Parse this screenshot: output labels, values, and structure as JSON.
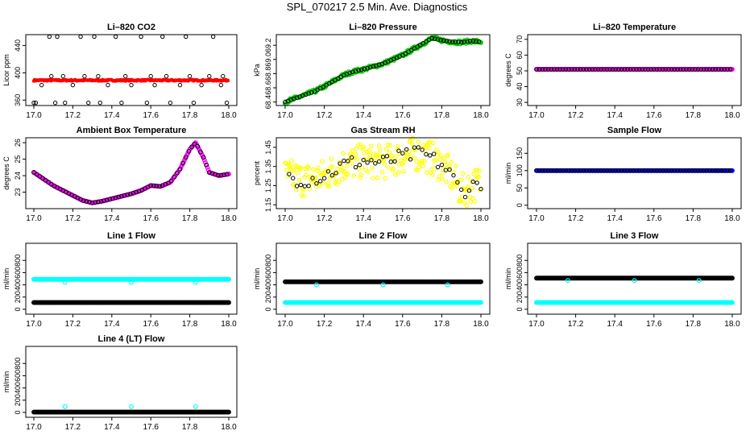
{
  "page": {
    "title": "SPL_070217  2.5 Min. Ave. Diagnostics"
  },
  "chart_data": [
    {
      "id": "co2",
      "type": "scatter",
      "title": "Li–820 CO2",
      "xlabel": "",
      "ylabel": "Licor ppm",
      "xlim": [
        17.0,
        18.0
      ],
      "ylim": [
        352,
        456
      ],
      "xticks": [
        17.0,
        17.2,
        17.4,
        17.6,
        17.8,
        18.0
      ],
      "xtick_labels": [
        "17.0",
        "17.2",
        "17.4",
        "17.6",
        "17.8",
        "18.0"
      ],
      "yticks": [
        360,
        400,
        440
      ],
      "ytick_labels": [
        "360",
        "400",
        "440"
      ],
      "series": [
        {
          "name": "licor",
          "color": "#000000",
          "marker": "open-circle",
          "x": [
            17.0,
            17.04,
            17.08,
            17.11,
            17.12,
            17.16,
            17.2,
            17.24,
            17.28,
            17.31,
            17.34,
            17.38,
            17.42,
            17.45,
            17.5,
            17.55,
            17.58,
            17.62,
            17.66,
            17.7,
            17.75,
            17.78,
            17.82,
            17.86,
            17.92,
            17.96,
            17.99,
            17.01,
            17.09,
            17.15,
            17.26,
            17.33,
            17.47,
            17.6,
            17.68,
            17.8,
            17.9,
            17.97
          ],
          "y": [
            356,
            382,
            453,
            356,
            453,
            356,
            382,
            453,
            356,
            453,
            356,
            382,
            453,
            356,
            382,
            453,
            356,
            382,
            453,
            356,
            382,
            453,
            356,
            382,
            453,
            382,
            356,
            356,
            395,
            395,
            395,
            395,
            395,
            395,
            395,
            395,
            395,
            395
          ]
        },
        {
          "name": "co2_mean",
          "color": "#ff0000",
          "marker": "filled-circle",
          "x": [
            17.0,
            18.0
          ],
          "y": [
            389,
            390
          ]
        }
      ]
    },
    {
      "id": "pressure",
      "type": "scatter",
      "title": "Li–820 Pressure",
      "xlabel": "",
      "ylabel": "kPa",
      "xlim": [
        17.0,
        18.0
      ],
      "ylim": [
        68.35,
        69.35
      ],
      "xticks": [
        17.0,
        17.2,
        17.4,
        17.6,
        17.8,
        18.0
      ],
      "xtick_labels": [
        "17.0",
        "17.2",
        "17.4",
        "17.6",
        "17.8",
        "18.0"
      ],
      "yticks": [
        68.4,
        68.6,
        68.8,
        69.0,
        69.2
      ],
      "ytick_labels": [
        "68.4",
        "68.6",
        "68.8",
        "69.0",
        "69.2"
      ],
      "series": [
        {
          "name": "pressure",
          "color": "#00cc00",
          "edge": "#000000",
          "x": [
            17.0,
            17.05,
            17.1,
            17.15,
            17.2,
            17.25,
            17.3,
            17.35,
            17.4,
            17.45,
            17.5,
            17.55,
            17.6,
            17.65,
            17.7,
            17.75,
            17.8,
            17.85,
            17.9,
            17.95,
            18.0
          ],
          "y": [
            68.4,
            68.45,
            68.5,
            68.55,
            68.62,
            68.7,
            68.78,
            68.83,
            68.86,
            68.9,
            68.94,
            69.0,
            69.06,
            69.14,
            69.22,
            69.3,
            69.27,
            69.25,
            69.24,
            69.26,
            69.25
          ]
        }
      ]
    },
    {
      "id": "licor_temp",
      "type": "scatter",
      "title": "Li–820 Temperature",
      "xlabel": "",
      "ylabel": "degrees C",
      "xlim": [
        17.0,
        18.0
      ],
      "ylim": [
        28,
        73
      ],
      "xticks": [
        17.0,
        17.2,
        17.4,
        17.6,
        17.8,
        18.0
      ],
      "xtick_labels": [
        "17.0",
        "17.2",
        "17.4",
        "17.6",
        "17.8",
        "18.0"
      ],
      "yticks": [
        30,
        40,
        50,
        60,
        70
      ],
      "ytick_labels": [
        "30",
        "40",
        "50",
        "60",
        "70"
      ],
      "series": [
        {
          "name": "cell_temp",
          "color": "#ff00ff",
          "edge": "#000000",
          "x": [
            17.0,
            18.0
          ],
          "y": [
            51,
            51
          ]
        }
      ]
    },
    {
      "id": "ambient",
      "type": "line",
      "title": "Ambient Box Temperature",
      "xlabel": "",
      "ylabel": "degrees C",
      "xlim": [
        17.0,
        18.0
      ],
      "ylim": [
        22.0,
        26.3
      ],
      "xticks": [
        17.0,
        17.2,
        17.4,
        17.6,
        17.8,
        18.0
      ],
      "xtick_labels": [
        "17.0",
        "17.2",
        "17.4",
        "17.6",
        "17.8",
        "18.0"
      ],
      "yticks": [
        23,
        24,
        25,
        26
      ],
      "ytick_labels": [
        "23",
        "24",
        "25",
        "26"
      ],
      "series": [
        {
          "name": "ambient",
          "color": "#ff00ff",
          "edge": "#000000",
          "x": [
            17.0,
            17.05,
            17.1,
            17.15,
            17.2,
            17.25,
            17.3,
            17.35,
            17.4,
            17.45,
            17.5,
            17.55,
            17.6,
            17.65,
            17.7,
            17.75,
            17.8,
            17.83,
            17.87,
            17.9,
            17.95,
            18.0
          ],
          "y": [
            24.2,
            23.8,
            23.4,
            23.1,
            22.8,
            22.5,
            22.35,
            22.45,
            22.6,
            22.75,
            22.9,
            23.1,
            23.4,
            23.35,
            23.6,
            24.4,
            25.6,
            26.0,
            25.1,
            24.2,
            24.0,
            24.1
          ]
        }
      ]
    },
    {
      "id": "rh",
      "type": "scatter",
      "title": "Gas Stream RH",
      "xlabel": "",
      "ylabel": "percent",
      "xlim": [
        17.0,
        18.0
      ],
      "ylim": [
        1.13,
        1.5
      ],
      "xticks": [
        17.0,
        17.2,
        17.4,
        17.6,
        17.8,
        18.0
      ],
      "xtick_labels": [
        "17.0",
        "17.2",
        "17.4",
        "17.6",
        "17.8",
        "18.0"
      ],
      "yticks": [
        1.15,
        1.25,
        1.35,
        1.45
      ],
      "ytick_labels": [
        "1.15",
        "1.25",
        "1.35",
        "1.45"
      ],
      "series": [
        {
          "name": "rh_mean",
          "color": "#ffff00",
          "x": [
            17.0,
            17.1,
            17.2,
            17.3,
            17.4,
            17.5,
            17.6,
            17.7,
            17.75,
            17.8,
            17.85,
            17.9,
            18.0
          ],
          "y": [
            1.3,
            1.28,
            1.3,
            1.36,
            1.38,
            1.37,
            1.4,
            1.42,
            1.39,
            1.36,
            1.3,
            1.22,
            1.27
          ]
        }
      ]
    },
    {
      "id": "sample_flow",
      "type": "scatter",
      "title": "Sample Flow",
      "xlabel": "",
      "ylabel": "ml/min",
      "xlim": [
        17.0,
        18.0
      ],
      "ylim": [
        -10,
        195
      ],
      "xticks": [
        17.0,
        17.2,
        17.4,
        17.6,
        17.8,
        18.0
      ],
      "xtick_labels": [
        "17.0",
        "17.2",
        "17.4",
        "17.6",
        "17.8",
        "18.0"
      ],
      "yticks": [
        0,
        50,
        100,
        150
      ],
      "ytick_labels": [
        "0",
        "50",
        "100",
        "150"
      ],
      "series": [
        {
          "name": "sample_flow",
          "color": "#0000ff",
          "edge": "#000000",
          "x": [
            17.0,
            18.0
          ],
          "y": [
            100,
            100
          ]
        }
      ]
    },
    {
      "id": "line1",
      "type": "scatter",
      "title": "Line 1 Flow",
      "xlabel": "",
      "ylabel": "ml/min",
      "xlim": [
        17.0,
        18.0
      ],
      "ylim": [
        -80,
        1080
      ],
      "xticks": [
        17.0,
        17.2,
        17.4,
        17.6,
        17.8,
        18.0
      ],
      "xtick_labels": [
        "17.0",
        "17.2",
        "17.4",
        "17.6",
        "17.8",
        "18.0"
      ],
      "yticks": [
        0,
        200,
        400,
        600,
        800
      ],
      "ytick_labels": [
        "0",
        "200",
        "400",
        "600",
        "800"
      ],
      "series": [
        {
          "name": "line_flow",
          "color": "#000000",
          "x": [
            17.0,
            18.0
          ],
          "y": [
            110,
            110
          ]
        },
        {
          "name": "total_flow",
          "color": "#00ffff",
          "x": [
            17.0,
            18.0
          ],
          "y": [
            490,
            490
          ]
        }
      ]
    },
    {
      "id": "line2",
      "type": "scatter",
      "title": "Line 2 Flow",
      "xlabel": "",
      "ylabel": "ml/min",
      "xlim": [
        17.0,
        18.0
      ],
      "ylim": [
        -80,
        1080
      ],
      "xticks": [
        17.0,
        17.2,
        17.4,
        17.6,
        17.8,
        18.0
      ],
      "xtick_labels": [
        "17.0",
        "17.2",
        "17.4",
        "17.6",
        "17.8",
        "18.0"
      ],
      "yticks": [
        0,
        200,
        400,
        600,
        800
      ],
      "ytick_labels": [
        "0",
        "200",
        "400",
        "600",
        "800"
      ],
      "series": [
        {
          "name": "line_flow",
          "color": "#000000",
          "x": [
            17.0,
            18.0
          ],
          "y": [
            450,
            450
          ]
        },
        {
          "name": "other_flow",
          "color": "#00ffff",
          "x": [
            17.0,
            18.0
          ],
          "y": [
            110,
            110
          ]
        }
      ]
    },
    {
      "id": "line3",
      "type": "scatter",
      "title": "Line 3 Flow",
      "xlabel": "",
      "ylabel": "ml/min",
      "xlim": [
        17.0,
        18.0
      ],
      "ylim": [
        -80,
        1080
      ],
      "xticks": [
        17.0,
        17.2,
        17.4,
        17.6,
        17.8,
        18.0
      ],
      "xtick_labels": [
        "17.0",
        "17.2",
        "17.4",
        "17.6",
        "17.8",
        "18.0"
      ],
      "yticks": [
        0,
        200,
        400,
        600,
        800
      ],
      "ytick_labels": [
        "0",
        "200",
        "400",
        "600",
        "800"
      ],
      "series": [
        {
          "name": "line_flow",
          "color": "#000000",
          "x": [
            17.0,
            18.0
          ],
          "y": [
            510,
            510
          ]
        },
        {
          "name": "other_flow",
          "color": "#00ffff",
          "x": [
            17.0,
            18.0
          ],
          "y": [
            110,
            110
          ]
        }
      ]
    },
    {
      "id": "line4",
      "type": "scatter",
      "title": "Line 4 (LT) Flow",
      "xlabel": "",
      "ylabel": "ml/min",
      "xlim": [
        17.0,
        18.0
      ],
      "ylim": [
        -80,
        1080
      ],
      "xticks": [
        17.0,
        17.2,
        17.4,
        17.6,
        17.8,
        18.0
      ],
      "xtick_labels": [
        "17.0",
        "17.2",
        "17.4",
        "17.6",
        "17.8",
        "18.0"
      ],
      "yticks": [
        0,
        200,
        400,
        600,
        800
      ],
      "ytick_labels": [
        "0",
        "200",
        "400",
        "600",
        "800"
      ],
      "series": [
        {
          "name": "line_flow",
          "color": "#000000",
          "x": [
            17.0,
            18.0
          ],
          "y": [
            5,
            5
          ]
        },
        {
          "name": "other_flow",
          "color": "#00ffff",
          "x": [
            17.16,
            17.5,
            17.83
          ],
          "y": [
            95,
            95,
            95
          ]
        }
      ]
    }
  ]
}
